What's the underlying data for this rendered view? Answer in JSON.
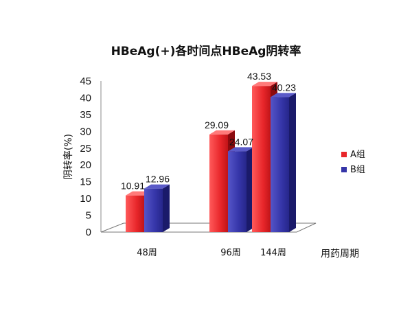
{
  "chart_data": {
    "type": "bar",
    "title": "HBeAg(+)各时间点HBeAg阴转率",
    "xlabel": "用药周期",
    "ylabel": "阴转率(%)",
    "categories": [
      "48周",
      "96周",
      "144周"
    ],
    "ylim": [
      0,
      45
    ],
    "yticks": [
      0,
      5,
      10,
      15,
      20,
      25,
      30,
      35,
      40,
      45
    ],
    "series": [
      {
        "name": "A组",
        "values": [
          10.91,
          29.09,
          43.53
        ],
        "color": "#e8262a"
      },
      {
        "name": "B组",
        "values": [
          12.96,
          24.07,
          40.23
        ],
        "color": "#3535a8"
      }
    ],
    "data_labels": true,
    "legend_position": "right",
    "grid": false,
    "style": "3d-bar"
  }
}
